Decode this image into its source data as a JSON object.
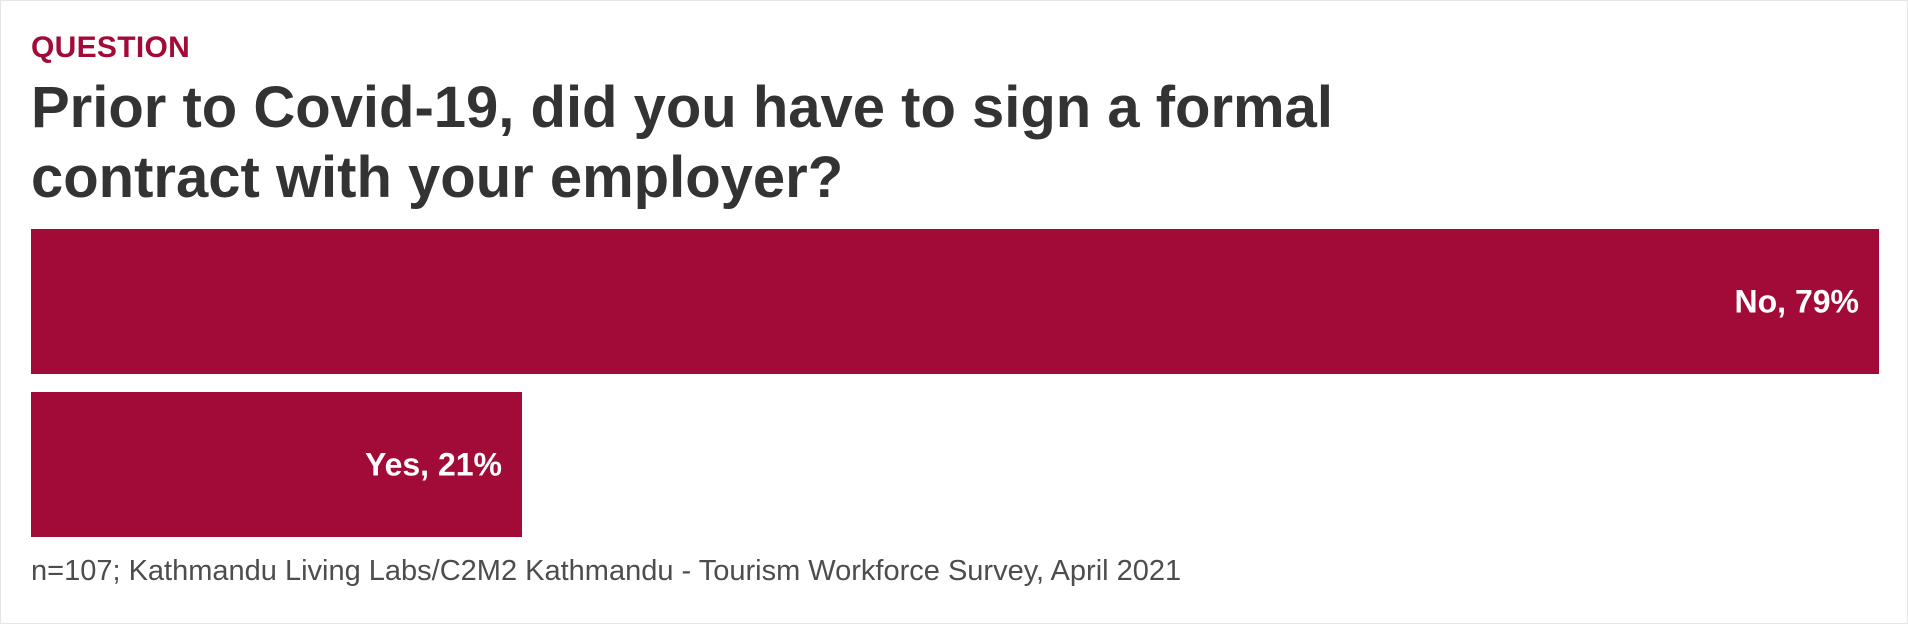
{
  "header": {
    "kicker": "QUESTION",
    "title": "Prior to Covid-19, did you have to sign a formal contract with your employer?"
  },
  "chart_data": {
    "type": "bar",
    "orientation": "horizontal",
    "categories": [
      "No",
      "Yes"
    ],
    "values": [
      79,
      21
    ],
    "value_suffix": "%",
    "labels": [
      "No, 79%",
      "Yes, 21%"
    ],
    "xlim": [
      0,
      79
    ],
    "grid": false,
    "legend": "none",
    "bar_color": "#a20b37"
  },
  "footer": {
    "source": "n=107; Kathmandu Living Labs/C2M2 Kathmandu - Tourism Workforce Survey, April 2021"
  }
}
